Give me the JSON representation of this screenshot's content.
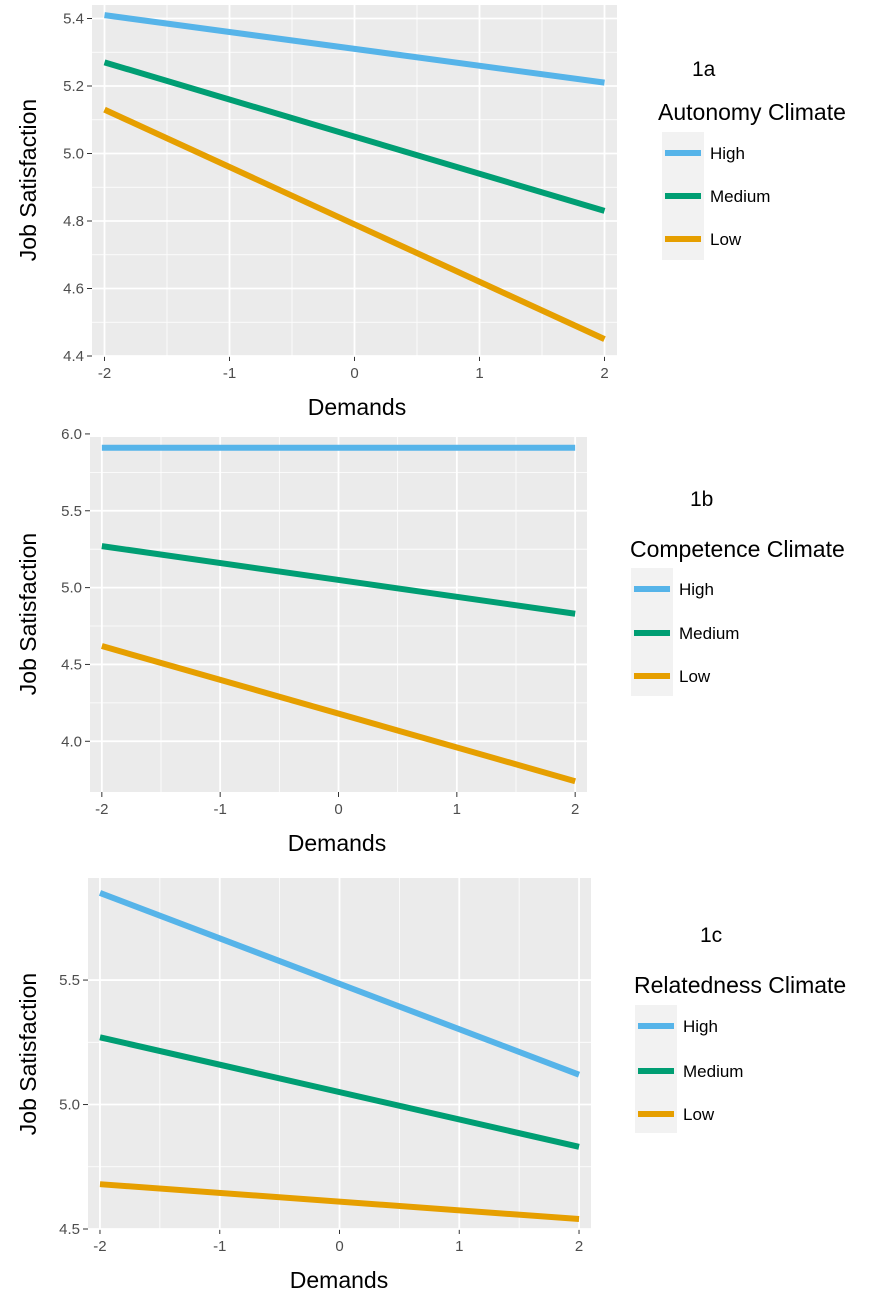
{
  "chart_data": [
    {
      "type": "line",
      "panel_label": "1a",
      "xlabel": "Demands",
      "ylabel": "Job Satisfaction",
      "xlim": [
        -2.1,
        2.1
      ],
      "ylim": [
        4.4,
        5.44
      ],
      "x_ticks": [
        -2,
        -1,
        0,
        1,
        2
      ],
      "y_ticks": [
        4.4,
        4.6,
        4.8,
        5.0,
        5.2,
        5.4
      ],
      "y_tick_labels": [
        "4.4",
        "4.6",
        "4.8",
        "5.0",
        "5.2",
        "5.4"
      ],
      "grid": true,
      "legend": {
        "title": "Autonomy Climate",
        "position": "right"
      },
      "series": [
        {
          "name": "High",
          "color": "#56B4E9",
          "x": [
            -2,
            2
          ],
          "values": [
            5.41,
            5.21
          ]
        },
        {
          "name": "Medium",
          "color": "#009E73",
          "x": [
            -2,
            2
          ],
          "values": [
            5.27,
            4.83
          ]
        },
        {
          "name": "Low",
          "color": "#E69F00",
          "x": [
            -2,
            2
          ],
          "values": [
            5.13,
            4.45
          ]
        }
      ]
    },
    {
      "type": "line",
      "panel_label": "1b",
      "xlabel": "Demands",
      "ylabel": "Job Satisfaction",
      "xlim": [
        -2.1,
        2.1
      ],
      "ylim": [
        3.67,
        5.98
      ],
      "x_ticks": [
        -2,
        -1,
        0,
        1,
        2
      ],
      "y_ticks": [
        4.0,
        4.5,
        5.0,
        5.5,
        6.0
      ],
      "y_tick_labels": [
        "4.0",
        "4.5",
        "5.0",
        "5.5",
        "6.0"
      ],
      "grid": true,
      "legend": {
        "title": "Competence Climate",
        "position": "right"
      },
      "series": [
        {
          "name": "High",
          "color": "#56B4E9",
          "x": [
            -2,
            2
          ],
          "values": [
            5.91,
            5.91
          ]
        },
        {
          "name": "Medium",
          "color": "#009E73",
          "x": [
            -2,
            2
          ],
          "values": [
            5.27,
            4.83
          ]
        },
        {
          "name": "Low",
          "color": "#E69F00",
          "x": [
            -2,
            2
          ],
          "values": [
            4.62,
            3.74
          ]
        }
      ]
    },
    {
      "type": "line",
      "panel_label": "1c",
      "xlabel": "Demands",
      "ylabel": "Job Satisfaction",
      "xlim": [
        -2.1,
        2.1
      ],
      "ylim": [
        4.5,
        5.91
      ],
      "x_ticks": [
        -2,
        -1,
        0,
        1,
        2
      ],
      "y_ticks": [
        4.5,
        5.0,
        5.5
      ],
      "y_tick_labels": [
        "4.5",
        "5.0",
        "5.5"
      ],
      "grid": true,
      "legend": {
        "title": "Relatedness Climate",
        "position": "right"
      },
      "series": [
        {
          "name": "High",
          "color": "#56B4E9",
          "x": [
            -2,
            2
          ],
          "values": [
            5.85,
            5.12
          ]
        },
        {
          "name": "Medium",
          "color": "#009E73",
          "x": [
            -2,
            2
          ],
          "values": [
            5.27,
            4.83
          ]
        },
        {
          "name": "Low",
          "color": "#E69F00",
          "x": [
            -2,
            2
          ],
          "values": [
            4.68,
            4.54
          ]
        }
      ]
    }
  ]
}
